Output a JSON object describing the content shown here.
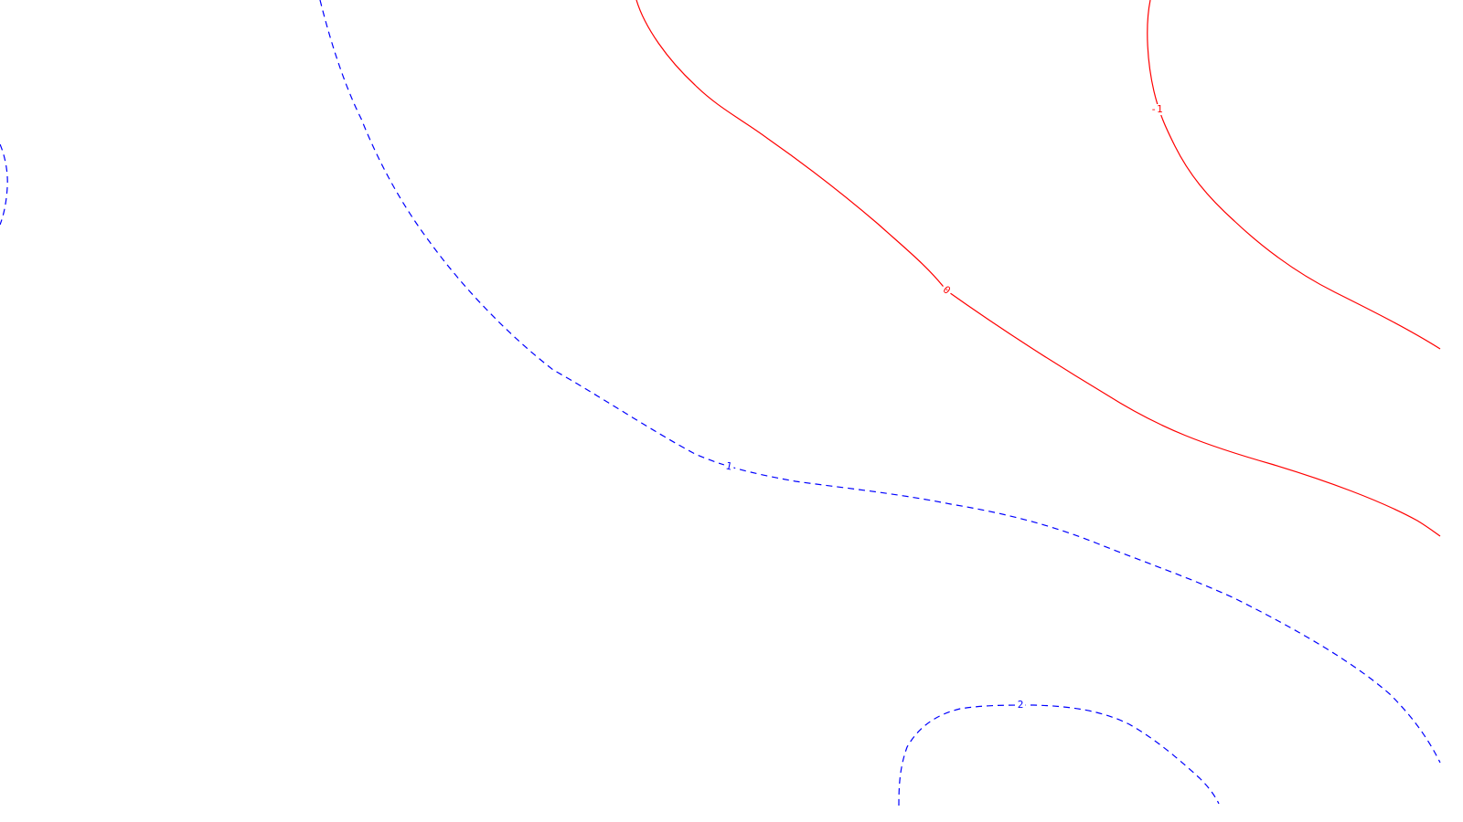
{
  "colors": {
    "background": "#ffffff",
    "positive": "#0000ff",
    "negative": "#ff0000"
  },
  "contours": [
    {
      "name": "contour-1",
      "label": "1",
      "sign": "positive",
      "style": "dashed"
    },
    {
      "name": "contour-2",
      "label": "2",
      "sign": "positive",
      "style": "dashed"
    },
    {
      "name": "contour-left-edge",
      "label": "",
      "sign": "positive",
      "style": "dashed"
    },
    {
      "name": "contour-0",
      "label": "0",
      "sign": "negative",
      "style": "solid"
    },
    {
      "name": "contour-neg-1",
      "label": "-1",
      "sign": "negative",
      "style": "solid"
    }
  ]
}
